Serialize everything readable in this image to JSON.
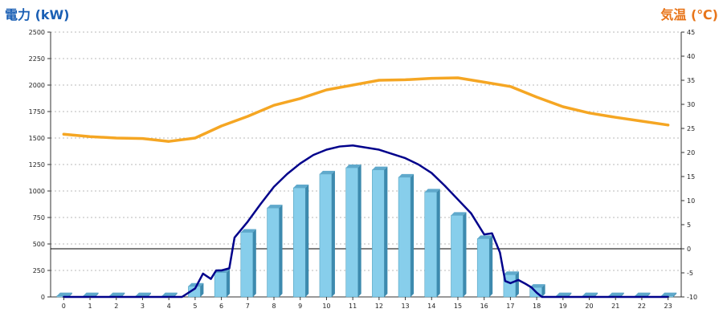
{
  "chart_data": {
    "type": "bar",
    "left_axis_label": "電力 (kW)",
    "right_axis_label": "気温 (℃)",
    "categories": [
      "0",
      "1",
      "2",
      "3",
      "4",
      "5",
      "6",
      "7",
      "8",
      "9",
      "10",
      "11",
      "12",
      "13",
      "14",
      "15",
      "16",
      "17",
      "18",
      "19",
      "20",
      "21",
      "22",
      "23"
    ],
    "y_left": {
      "min": 0,
      "max": 2500,
      "ticks": [
        0,
        250,
        500,
        750,
        1000,
        1250,
        1500,
        1750,
        2000,
        2250,
        2500
      ]
    },
    "y_right": {
      "min": -10,
      "max": 45,
      "ticks": [
        -10,
        -5,
        0,
        5,
        10,
        15,
        20,
        25,
        30,
        35,
        40,
        45
      ]
    },
    "grid": "horizontal-dotted",
    "legend": "none",
    "series": [
      {
        "kind": "bar",
        "axis": "left",
        "color": "#87ceeb",
        "values": [
          10,
          10,
          10,
          10,
          10,
          100,
          230,
          610,
          840,
          1030,
          1160,
          1220,
          1200,
          1130,
          990,
          770,
          550,
          210,
          90,
          10,
          10,
          10,
          10,
          10
        ]
      },
      {
        "kind": "line",
        "axis": "left",
        "color": "#00008b",
        "x": [
          0,
          1,
          2,
          3,
          4,
          4.5,
          5,
          5.3,
          5.6,
          5.8,
          6,
          6.3,
          6.5,
          7,
          7.5,
          8,
          8.5,
          9,
          9.5,
          10,
          10.5,
          11,
          11.5,
          12,
          12.5,
          13,
          13.5,
          14,
          14.5,
          15,
          15.5,
          16,
          16.3,
          16.6,
          16.8,
          17,
          17.3,
          17.6,
          17.8,
          18,
          18.2,
          19,
          20,
          21,
          22,
          23
        ],
        "values": [
          0,
          0,
          0,
          0,
          0,
          0,
          80,
          220,
          170,
          250,
          250,
          270,
          560,
          710,
          880,
          1040,
          1160,
          1260,
          1340,
          1390,
          1420,
          1430,
          1410,
          1390,
          1350,
          1310,
          1250,
          1170,
          1050,
          920,
          790,
          590,
          600,
          420,
          150,
          130,
          160,
          120,
          90,
          40,
          0,
          0,
          0,
          0,
          0,
          0
        ]
      },
      {
        "kind": "line",
        "axis": "right",
        "color": "#f5a623",
        "values": [
          23.8,
          23.3,
          23,
          22.9,
          22.3,
          23,
          25.5,
          27.5,
          29.8,
          31.2,
          33,
          34,
          35,
          35.1,
          35.4,
          35.5,
          34.6,
          33.7,
          31.5,
          29.5,
          28.2,
          27.3,
          26.5,
          25.7
        ]
      }
    ]
  }
}
